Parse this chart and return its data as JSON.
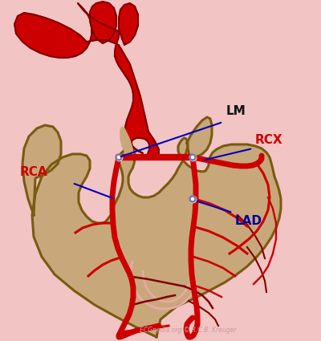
{
  "bg_color": "#f2c4c4",
  "heart_fill": "#c8a87a",
  "heart_stroke": "#7a5a10",
  "artery_red": "#cc0000",
  "artery_dark": "#800000",
  "artery_pink": "#e8a8a8",
  "label_blue": "#000099",
  "label_red": "#cc0000",
  "label_black": "#111111",
  "annotation_color": "#0000bb",
  "watermark": "ECGpedia.org © R.C.B. Kreuger",
  "watermark_color": "#cc9999",
  "lm_label": "LM",
  "rcx_label": "RCX",
  "rca_label": "RCA",
  "lad_label": "LAD",
  "lm_label_color": "#111111",
  "rcx_label_color": "#cc0000",
  "rca_label_color": "#cc0000",
  "lad_label_color": "#000099"
}
